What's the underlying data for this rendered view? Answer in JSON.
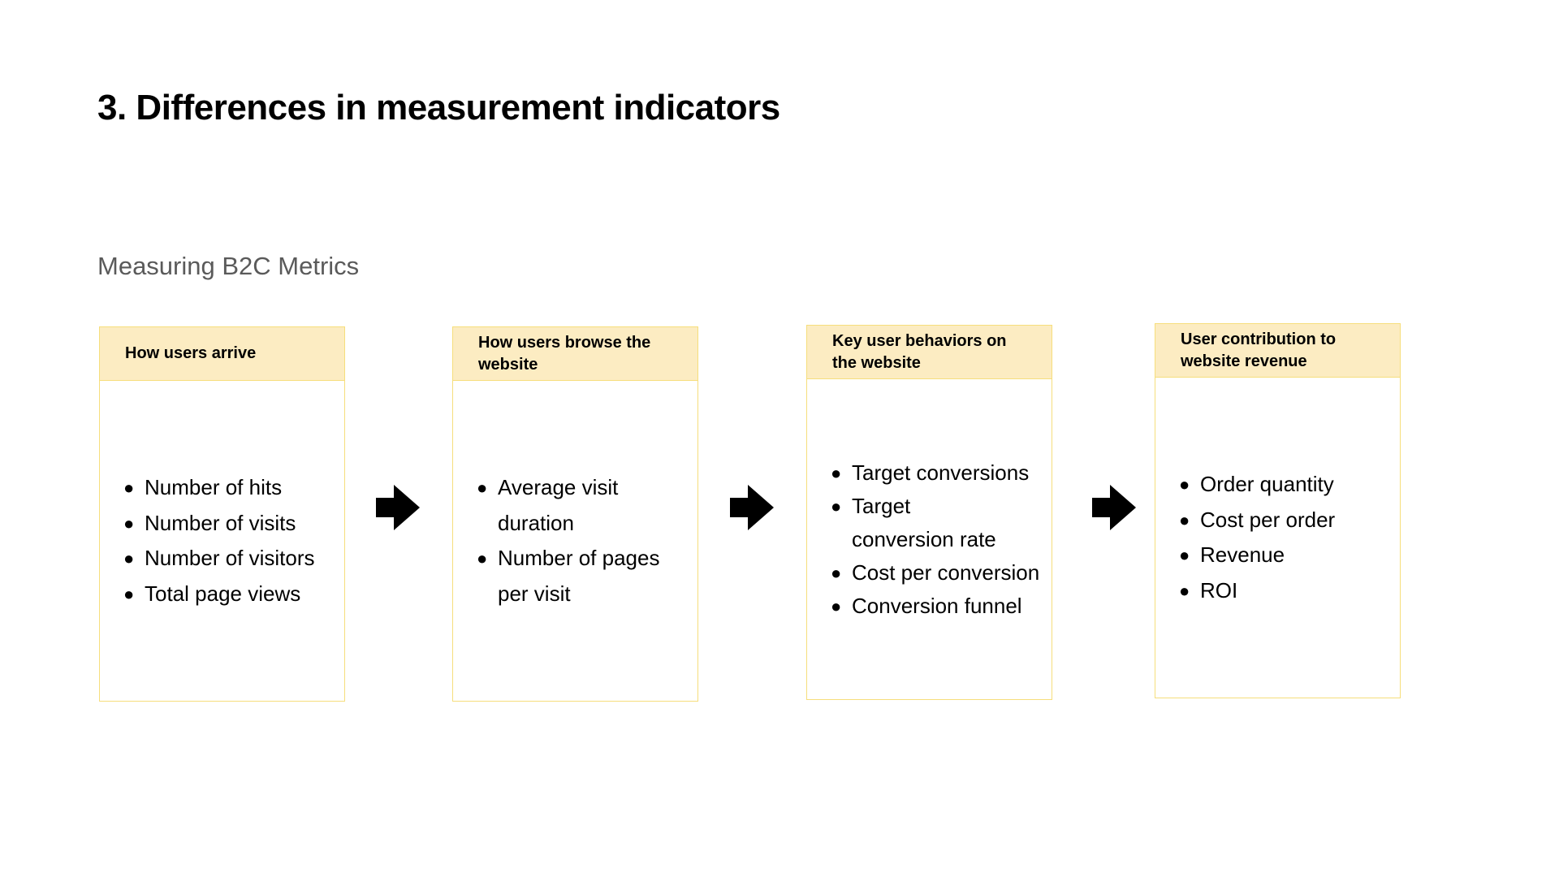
{
  "header": {
    "title": "3. Differences in measurement indicators",
    "subtitle": "Measuring B2C Metrics"
  },
  "cards": [
    {
      "heading": "How users arrive",
      "items": [
        "Number of hits",
        "Number of visits",
        "Number of visitors",
        "Total page views"
      ]
    },
    {
      "heading": "How users browse the website",
      "items": [
        "Average visit duration",
        "Number of pages per visit"
      ]
    },
    {
      "heading": "Key user behaviors on the website",
      "items": [
        "Target conversions",
        "Target conversion rate",
        "Cost per conversion",
        "Conversion funnel"
      ]
    },
    {
      "heading": "User contribution to website revenue",
      "items": [
        "Order quantity",
        "Cost per order",
        "Revenue",
        "ROI"
      ]
    }
  ],
  "icons": {
    "arrow": "arrow-right-icon",
    "bullet": "bullet-icon"
  },
  "colors": {
    "card_header_fill": "#fcecc2",
    "card_border": "#f6de7c",
    "subtitle_text": "#5a5a5a"
  }
}
